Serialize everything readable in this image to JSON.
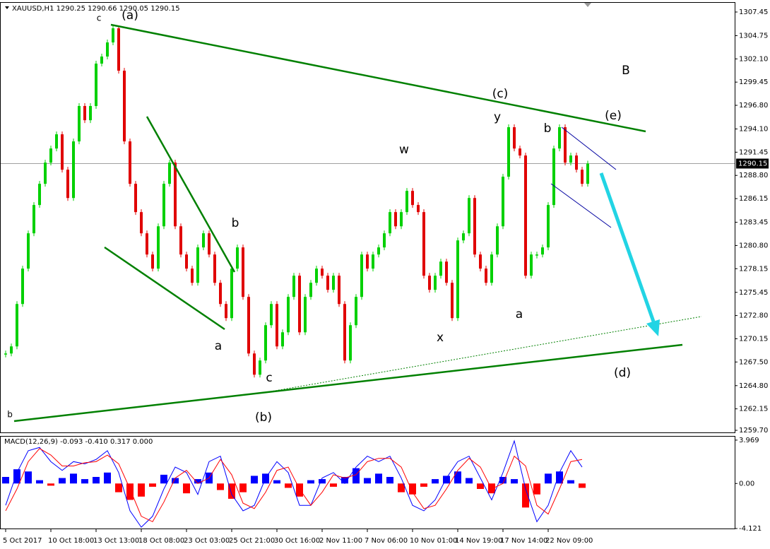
{
  "chart_data": [
    {
      "type": "candles",
      "title": "XAUUSD,H1  1290.25 1290.66 1290.05 1290.15",
      "categories": [
        "5 Oct 2017",
        null,
        null,
        null,
        null,
        null,
        null,
        null,
        "10 Oct 18:00",
        null,
        null,
        null,
        null,
        null,
        null,
        null,
        "13 Oct 13:00",
        null,
        null,
        null,
        null,
        null,
        null,
        null,
        "18 Oct 08:00",
        null,
        null,
        null,
        null,
        null,
        null,
        null,
        "23 Oct 03:00",
        null,
        null,
        null,
        null,
        null,
        null,
        null,
        "25 Oct 21:00",
        null,
        null,
        null,
        null,
        null,
        null,
        null,
        "30 Oct 16:00",
        null,
        null,
        null,
        null,
        null,
        null,
        null,
        "2 Nov 11:00",
        null,
        null,
        null,
        null,
        null,
        null,
        null,
        "7 Nov 06:00",
        null,
        null,
        null,
        null,
        null,
        null,
        null,
        "10 Nov 01:00",
        null,
        null,
        null,
        null,
        null,
        null,
        null,
        "14 Nov 19:00",
        null,
        null,
        null,
        null,
        null,
        null,
        null,
        "17 Nov 14:00",
        null,
        null,
        null,
        null,
        null,
        null,
        null,
        "22 Nov 09:00",
        null,
        null,
        null,
        null,
        null,
        null,
        null
      ],
      "values": [
        1268.47,
        1269.28,
        1274.12,
        1278.16,
        1282.19,
        1285.42,
        1287.84,
        1290.26,
        1291.87,
        1293.49,
        1289.45,
        1286.22,
        1292.68,
        1296.72,
        1295.1,
        1296.72,
        1301.56,
        1302.37,
        1303.98,
        1305.59,
        1300.75,
        1292.68,
        1287.84,
        1284.61,
        1282.19,
        1279.77,
        1278.16,
        1282.99,
        1287.84,
        1290.26,
        1282.99,
        1279.77,
        1278.16,
        1276.54,
        1280.58,
        1282.19,
        1279.77,
        1276.54,
        1274.12,
        1272.51,
        1278.16,
        1280.58,
        1274.93,
        1268.47,
        1266.05,
        1267.67,
        1271.7,
        1274.12,
        1269.28,
        1270.89,
        1274.93,
        1277.35,
        1270.89,
        1274.93,
        1276.54,
        1278.16,
        1277.35,
        1275.74,
        1277.35,
        1274.12,
        1267.67,
        1271.7,
        1274.93,
        1279.77,
        1278.16,
        1279.77,
        1280.58,
        1282.19,
        1284.61,
        1282.99,
        1284.61,
        1287.03,
        1285.42,
        1284.61,
        1277.35,
        1275.74,
        1277.35,
        1278.96,
        1276.54,
        1272.51,
        1281.38,
        1282.19,
        1286.22,
        1279.77,
        1278.16,
        1276.54,
        1279.77,
        1282.99,
        1288.65,
        1294.3,
        1291.87,
        1291.07,
        1277.35,
        1279.77,
        1279.77,
        1280.58,
        1285.42,
        1291.87,
        1294.3,
        1290.26,
        1291.07,
        1289.45,
        1287.84,
        1290.15
      ],
      "up_color": "#00d000",
      "down_color": "#e00000",
      "current_price": 1290.15,
      "ylim": [
        1259.46,
        1308.58
      ],
      "yticks": [
        1307.45,
        1304.75,
        {
          "value": 1302.1,
          "label": "1302.10"
        },
        1299.45,
        {
          "value": 1296.8,
          "label": "1296.80"
        },
        {
          "value": 1294.1,
          "label": "1294.10"
        },
        1291.45,
        {
          "value": 1288.8,
          "label": "1288.80"
        },
        1286.15,
        1283.45,
        {
          "value": 1280.8,
          "label": "1280.80"
        },
        1278.15,
        1275.45,
        {
          "value": 1272.8,
          "label": "1272.80"
        },
        1270.15,
        {
          "value": 1267.5,
          "label": "1267.50"
        },
        {
          "value": 1264.8,
          "label": "1264.80"
        },
        1262.15,
        {
          "value": 1259.7,
          "label": "1259.70"
        }
      ],
      "annotations": [
        "(a)",
        "c",
        "B",
        "(c)",
        "y",
        "(e)",
        "b",
        "w",
        "b",
        "a",
        "x",
        "a",
        "(d)",
        "c",
        "b",
        "(b)"
      ]
    },
    {
      "type": "macd",
      "title": "MACD(12,26,9) -0.093 -0.410 0.317 0.000",
      "histogram": [
        0.6,
        1.3,
        1.1,
        0.3,
        -0.2,
        0.5,
        0.9,
        0.4,
        0.6,
        1.0,
        -0.8,
        -1.5,
        -1.2,
        -0.3,
        0.8,
        0.5,
        -0.9,
        0.4,
        1.0,
        -0.6,
        -1.4,
        -0.8,
        0.7,
        0.9,
        0.3,
        -0.4,
        -1.2,
        0.3,
        0.4,
        -0.3,
        0.6,
        1.4,
        0.5,
        0.9,
        0.6,
        -0.8,
        -1.0,
        -0.3,
        0.4,
        0.7,
        1.1,
        0.5,
        -0.5,
        -0.9,
        0.6,
        0.4,
        -2.2,
        -1.0,
        0.9,
        1.1,
        0.3,
        -0.4
      ],
      "main": [
        -2.0,
        1.0,
        3.0,
        3.3,
        2.0,
        1.2,
        2.0,
        1.8,
        2.2,
        3.0,
        1.0,
        -2.5,
        -4.0,
        -3.0,
        -0.5,
        1.5,
        1.0,
        -1.0,
        2.0,
        2.5,
        -1.0,
        -2.5,
        -2.0,
        0.5,
        2.0,
        1.0,
        -2.0,
        -2.0,
        0.5,
        1.0,
        0.0,
        1.5,
        2.5,
        2.0,
        2.5,
        0.5,
        -2.0,
        -2.5,
        -1.5,
        0.5,
        2.0,
        2.5,
        0.5,
        -1.5,
        1.0,
        3.9,
        -0.5,
        -3.5,
        -2.0,
        1.0,
        3.0,
        1.5
      ],
      "signal": [
        -2.5,
        -0.5,
        2.0,
        3.2,
        2.6,
        1.6,
        1.6,
        1.9,
        2.0,
        2.6,
        1.8,
        -0.5,
        -3.0,
        -3.5,
        -1.7,
        0.5,
        1.2,
        0.0,
        0.5,
        2.2,
        0.8,
        -1.8,
        -2.3,
        -0.8,
        1.2,
        1.5,
        -0.5,
        -2.0,
        -0.8,
        0.8,
        0.5,
        0.8,
        2.0,
        2.3,
        2.3,
        1.5,
        -0.8,
        -2.3,
        -2.0,
        -0.5,
        1.2,
        2.3,
        1.5,
        -0.5,
        0.0,
        2.5,
        1.6,
        -2.0,
        -2.8,
        -0.5,
        2.0,
        2.2
      ],
      "positive_color": "#0000ff",
      "negative_color": "#ff0000",
      "main_color": "#0000ff",
      "signal_color": "#ff0000",
      "ylim": [
        -4.25,
        4.35
      ],
      "yticks": [
        3.969,
        {
          "value": 0,
          "label": "0.00"
        },
        -4.121
      ]
    }
  ]
}
